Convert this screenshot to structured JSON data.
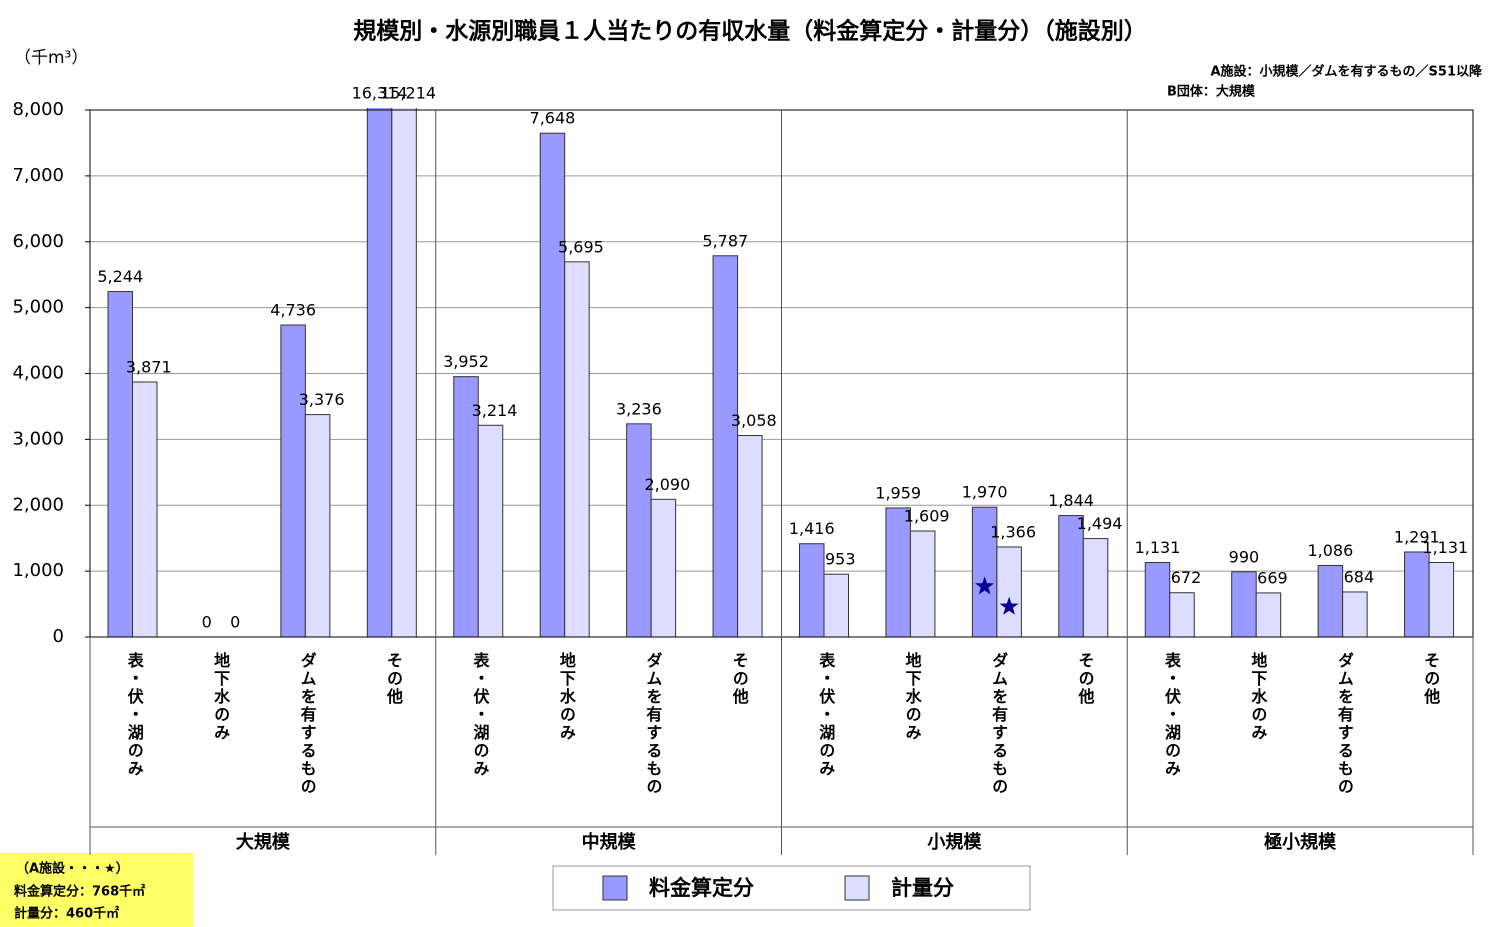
{
  "chart_data": {
    "type": "bar",
    "title": "規模別・水源別職員１人当たりの有収水量（料金算定分・計量分）（施設別）",
    "y_unit": "（千m³）",
    "notes": [
      "A施設：小規模／ダムを有するもの／S51以降",
      "B団体：大規模"
    ],
    "groups": [
      {
        "label": "大規模",
        "categories": [
          "表・伏・湖のみ",
          "地下水のみ",
          "ダムを有するもの",
          "その他"
        ]
      },
      {
        "label": "中規模",
        "categories": [
          "表・伏・湖のみ",
          "地下水のみ",
          "ダムを有するもの",
          "その他"
        ]
      },
      {
        "label": "小規模",
        "categories": [
          "表・伏・湖のみ",
          "地下水のみ",
          "ダムを有するもの",
          "その他"
        ]
      },
      {
        "label": "極小規模",
        "categories": [
          "表・伏・湖のみ",
          "地下水のみ",
          "ダムを有するもの",
          "その他"
        ]
      }
    ],
    "series": [
      {
        "name": "料金算定分",
        "color": "#9999ff",
        "values": [
          5244,
          0,
          4736,
          16314,
          3952,
          7648,
          3236,
          5787,
          1416,
          1959,
          1970,
          1844,
          1131,
          990,
          1086,
          1291
        ],
        "value_labels": [
          "5,244",
          "0",
          "4,736",
          "16,314",
          "3,952",
          "7,648",
          "3,236",
          "5,787",
          "1,416",
          "1,959",
          "1,970",
          "1,844",
          "1,131",
          "990",
          "1,086",
          "1,291"
        ],
        "star_values": [
          null,
          null,
          null,
          null,
          null,
          null,
          null,
          null,
          null,
          null,
          768,
          null,
          null,
          null,
          null,
          null
        ]
      },
      {
        "name": "計量分",
        "color": "#ddddff",
        "values": [
          3871,
          0,
          3376,
          15214,
          3214,
          5695,
          2090,
          3058,
          953,
          1609,
          1366,
          1494,
          672,
          669,
          684,
          1131
        ],
        "value_labels": [
          "3,871",
          "0",
          "3,376",
          "15,214",
          "3,214",
          "5,695",
          "2,090",
          "3,058",
          "953",
          "1,609",
          "1,366",
          "1,494",
          "672",
          "669",
          "684",
          "1,131"
        ],
        "star_values": [
          null,
          null,
          null,
          null,
          null,
          null,
          null,
          null,
          null,
          null,
          460,
          null,
          null,
          null,
          null,
          null
        ]
      }
    ],
    "star_color": "#000099",
    "annotation": {
      "title": "（A施設・・・★）",
      "lines": [
        "料金算定分：768千㎡",
        "計量分：460千㎡"
      ],
      "color": "#ffff66"
    },
    "ylim": [
      0,
      8000
    ],
    "yticks": [
      {
        "value": 0,
        "label": "0"
      },
      {
        "value": 1000,
        "label": "1,000"
      },
      {
        "value": 2000,
        "label": "2,000"
      },
      {
        "value": 3000,
        "label": "3,000"
      },
      {
        "value": 4000,
        "label": "4,000"
      },
      {
        "value": 5000,
        "label": "5,000"
      },
      {
        "value": 6000,
        "label": "6,000"
      },
      {
        "value": 7000,
        "label": "7,000"
      },
      {
        "value": 8000,
        "label": "8,000"
      }
    ],
    "grid": true,
    "legend": "bottom"
  }
}
